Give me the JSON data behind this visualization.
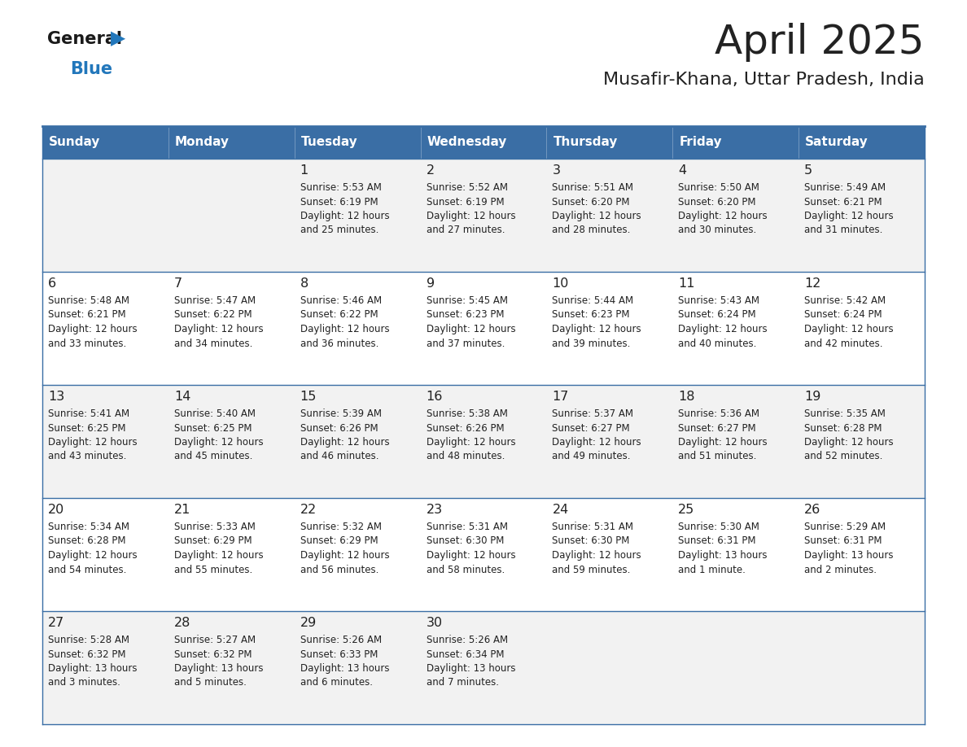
{
  "title": "April 2025",
  "subtitle": "Musafir-Khana, Uttar Pradesh, India",
  "days_of_week": [
    "Sunday",
    "Monday",
    "Tuesday",
    "Wednesday",
    "Thursday",
    "Friday",
    "Saturday"
  ],
  "header_bg": "#3a6ea5",
  "header_text": "#ffffff",
  "cell_bg_odd": "#f2f2f2",
  "cell_bg_even": "#ffffff",
  "border_color": "#3a6ea5",
  "text_color": "#222222",
  "logo_general_color": "#1a1a1a",
  "logo_blue_color": "#2277bb",
  "weeks": [
    [
      {
        "day": "",
        "lines": []
      },
      {
        "day": "",
        "lines": []
      },
      {
        "day": "1",
        "lines": [
          "Sunrise: 5:53 AM",
          "Sunset: 6:19 PM",
          "Daylight: 12 hours",
          "and 25 minutes."
        ]
      },
      {
        "day": "2",
        "lines": [
          "Sunrise: 5:52 AM",
          "Sunset: 6:19 PM",
          "Daylight: 12 hours",
          "and 27 minutes."
        ]
      },
      {
        "day": "3",
        "lines": [
          "Sunrise: 5:51 AM",
          "Sunset: 6:20 PM",
          "Daylight: 12 hours",
          "and 28 minutes."
        ]
      },
      {
        "day": "4",
        "lines": [
          "Sunrise: 5:50 AM",
          "Sunset: 6:20 PM",
          "Daylight: 12 hours",
          "and 30 minutes."
        ]
      },
      {
        "day": "5",
        "lines": [
          "Sunrise: 5:49 AM",
          "Sunset: 6:21 PM",
          "Daylight: 12 hours",
          "and 31 minutes."
        ]
      }
    ],
    [
      {
        "day": "6",
        "lines": [
          "Sunrise: 5:48 AM",
          "Sunset: 6:21 PM",
          "Daylight: 12 hours",
          "and 33 minutes."
        ]
      },
      {
        "day": "7",
        "lines": [
          "Sunrise: 5:47 AM",
          "Sunset: 6:22 PM",
          "Daylight: 12 hours",
          "and 34 minutes."
        ]
      },
      {
        "day": "8",
        "lines": [
          "Sunrise: 5:46 AM",
          "Sunset: 6:22 PM",
          "Daylight: 12 hours",
          "and 36 minutes."
        ]
      },
      {
        "day": "9",
        "lines": [
          "Sunrise: 5:45 AM",
          "Sunset: 6:23 PM",
          "Daylight: 12 hours",
          "and 37 minutes."
        ]
      },
      {
        "day": "10",
        "lines": [
          "Sunrise: 5:44 AM",
          "Sunset: 6:23 PM",
          "Daylight: 12 hours",
          "and 39 minutes."
        ]
      },
      {
        "day": "11",
        "lines": [
          "Sunrise: 5:43 AM",
          "Sunset: 6:24 PM",
          "Daylight: 12 hours",
          "and 40 minutes."
        ]
      },
      {
        "day": "12",
        "lines": [
          "Sunrise: 5:42 AM",
          "Sunset: 6:24 PM",
          "Daylight: 12 hours",
          "and 42 minutes."
        ]
      }
    ],
    [
      {
        "day": "13",
        "lines": [
          "Sunrise: 5:41 AM",
          "Sunset: 6:25 PM",
          "Daylight: 12 hours",
          "and 43 minutes."
        ]
      },
      {
        "day": "14",
        "lines": [
          "Sunrise: 5:40 AM",
          "Sunset: 6:25 PM",
          "Daylight: 12 hours",
          "and 45 minutes."
        ]
      },
      {
        "day": "15",
        "lines": [
          "Sunrise: 5:39 AM",
          "Sunset: 6:26 PM",
          "Daylight: 12 hours",
          "and 46 minutes."
        ]
      },
      {
        "day": "16",
        "lines": [
          "Sunrise: 5:38 AM",
          "Sunset: 6:26 PM",
          "Daylight: 12 hours",
          "and 48 minutes."
        ]
      },
      {
        "day": "17",
        "lines": [
          "Sunrise: 5:37 AM",
          "Sunset: 6:27 PM",
          "Daylight: 12 hours",
          "and 49 minutes."
        ]
      },
      {
        "day": "18",
        "lines": [
          "Sunrise: 5:36 AM",
          "Sunset: 6:27 PM",
          "Daylight: 12 hours",
          "and 51 minutes."
        ]
      },
      {
        "day": "19",
        "lines": [
          "Sunrise: 5:35 AM",
          "Sunset: 6:28 PM",
          "Daylight: 12 hours",
          "and 52 minutes."
        ]
      }
    ],
    [
      {
        "day": "20",
        "lines": [
          "Sunrise: 5:34 AM",
          "Sunset: 6:28 PM",
          "Daylight: 12 hours",
          "and 54 minutes."
        ]
      },
      {
        "day": "21",
        "lines": [
          "Sunrise: 5:33 AM",
          "Sunset: 6:29 PM",
          "Daylight: 12 hours",
          "and 55 minutes."
        ]
      },
      {
        "day": "22",
        "lines": [
          "Sunrise: 5:32 AM",
          "Sunset: 6:29 PM",
          "Daylight: 12 hours",
          "and 56 minutes."
        ]
      },
      {
        "day": "23",
        "lines": [
          "Sunrise: 5:31 AM",
          "Sunset: 6:30 PM",
          "Daylight: 12 hours",
          "and 58 minutes."
        ]
      },
      {
        "day": "24",
        "lines": [
          "Sunrise: 5:31 AM",
          "Sunset: 6:30 PM",
          "Daylight: 12 hours",
          "and 59 minutes."
        ]
      },
      {
        "day": "25",
        "lines": [
          "Sunrise: 5:30 AM",
          "Sunset: 6:31 PM",
          "Daylight: 13 hours",
          "and 1 minute."
        ]
      },
      {
        "day": "26",
        "lines": [
          "Sunrise: 5:29 AM",
          "Sunset: 6:31 PM",
          "Daylight: 13 hours",
          "and 2 minutes."
        ]
      }
    ],
    [
      {
        "day": "27",
        "lines": [
          "Sunrise: 5:28 AM",
          "Sunset: 6:32 PM",
          "Daylight: 13 hours",
          "and 3 minutes."
        ]
      },
      {
        "day": "28",
        "lines": [
          "Sunrise: 5:27 AM",
          "Sunset: 6:32 PM",
          "Daylight: 13 hours",
          "and 5 minutes."
        ]
      },
      {
        "day": "29",
        "lines": [
          "Sunrise: 5:26 AM",
          "Sunset: 6:33 PM",
          "Daylight: 13 hours",
          "and 6 minutes."
        ]
      },
      {
        "day": "30",
        "lines": [
          "Sunrise: 5:26 AM",
          "Sunset: 6:34 PM",
          "Daylight: 13 hours",
          "and 7 minutes."
        ]
      },
      {
        "day": "",
        "lines": []
      },
      {
        "day": "",
        "lines": []
      },
      {
        "day": "",
        "lines": []
      }
    ]
  ]
}
